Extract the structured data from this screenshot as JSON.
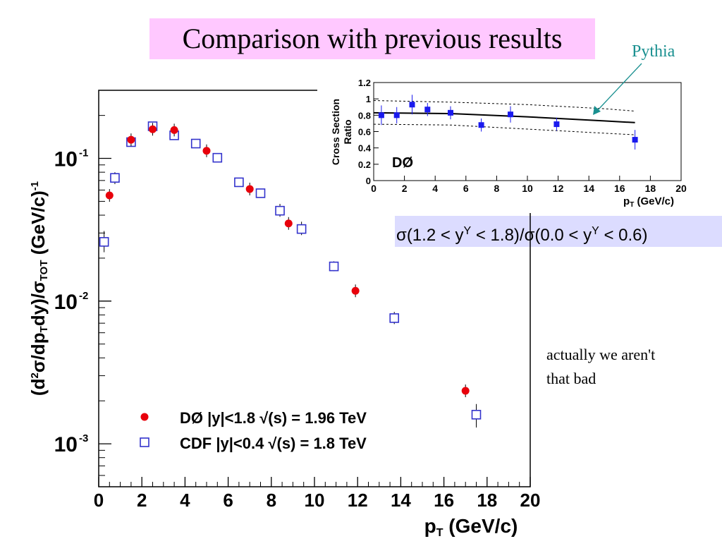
{
  "slide": {
    "title": "Comparison with previous results",
    "pythia_label": "Pythia",
    "ratio_formula": {
      "p1": "σ(1.2 < y",
      "sup1": "Υ",
      "p2": " < 1.8)/σ(0.0 < y",
      "sup2": "Υ",
      "p3": " < 0.6)"
    },
    "comment_line1": "actually we aren't",
    "comment_line2": "that bad"
  },
  "chart_data": [
    {
      "type": "scatter",
      "y_scale": "log",
      "xlim": [
        0,
        20
      ],
      "ylim": [
        0.0005,
        0.3
      ],
      "x_ticks": [
        "0",
        "2",
        "4",
        "6",
        "8",
        "10",
        "12",
        "14",
        "16",
        "18",
        "20"
      ],
      "y_ticks": [
        {
          "base": "10",
          "exp": "-1",
          "value": 0.1
        },
        {
          "base": "10",
          "exp": "-2",
          "value": 0.01
        },
        {
          "base": "10",
          "exp": "-3",
          "value": 0.001
        }
      ],
      "ylabel": {
        "p1": "(d",
        "s1": "2",
        "p2": "σ/dp",
        "s2": "T",
        "p3": "dy)/σ",
        "s3": "TOT",
        "p4": " (GeV/c)",
        "s4": "-1"
      },
      "xlabel": {
        "main": "p",
        "sub": "T",
        "rest": " (GeV/c)"
      },
      "legend_position": "bottom-left",
      "series": [
        {
          "name": "DØ |y|<1.8 √(s) = 1.96 TeV",
          "marker": "filled-circle",
          "color": "#e8000b",
          "x": [
            0.5,
            1.5,
            2.5,
            3.5,
            5.0,
            7.0,
            8.8,
            11.9,
            17.0
          ],
          "y": [
            0.055,
            0.135,
            0.16,
            0.158,
            0.113,
            0.061,
            0.035,
            0.0118,
            0.00235
          ]
        },
        {
          "name": "CDF |y|<0.4 √(s) = 1.8 TeV",
          "marker": "open-square",
          "color": "#3333cc",
          "x": [
            0.25,
            0.75,
            1.5,
            2.5,
            3.5,
            4.5,
            5.5,
            6.5,
            7.5,
            8.4,
            9.4,
            10.9,
            13.7,
            17.5
          ],
          "y": [
            0.026,
            0.073,
            0.13,
            0.168,
            0.145,
            0.127,
            0.101,
            0.068,
            0.057,
            0.043,
            0.032,
            0.0175,
            0.0076,
            0.0016
          ],
          "err_low": [
            0.022,
            0.066,
            0.125,
            0.162,
            0.138,
            0.12,
            0.096,
            0.064,
            0.053,
            0.039,
            0.029,
            0.0162,
            0.0069,
            0.0013
          ],
          "err_high": [
            0.031,
            0.08,
            0.137,
            0.175,
            0.152,
            0.134,
            0.106,
            0.073,
            0.061,
            0.048,
            0.036,
            0.019,
            0.0084,
            0.0019
          ]
        }
      ]
    },
    {
      "type": "scatter",
      "xlim": [
        0,
        20
      ],
      "ylim": [
        0,
        1.2
      ],
      "x_ticks": [
        "0",
        "2",
        "4",
        "6",
        "8",
        "10",
        "12",
        "14",
        "16",
        "18",
        "20"
      ],
      "y_ticks": [
        "0",
        "0.2",
        "0.4",
        "0.6",
        "0.8",
        "1",
        "1.2"
      ],
      "ylabel_line1": "Cross Section",
      "ylabel_line2": "Ratio",
      "xlabel": {
        "main": "p",
        "sub": "T",
        "rest": " (GeV/c)"
      },
      "watermark": "DØ",
      "series": [
        {
          "marker": "filled-square",
          "color": "#1a1aee",
          "x": [
            0.5,
            1.5,
            2.5,
            3.5,
            5.0,
            7.0,
            8.9,
            11.9,
            17.0
          ],
          "y": [
            0.8,
            0.8,
            0.93,
            0.87,
            0.83,
            0.68,
            0.81,
            0.69,
            0.5
          ],
          "err": [
            0.12,
            0.1,
            0.12,
            0.08,
            0.08,
            0.08,
            0.1,
            0.08,
            0.12
          ]
        }
      ],
      "curves": {
        "central": {
          "x": [
            0,
            5,
            10,
            15,
            17
          ],
          "y": [
            0.83,
            0.82,
            0.78,
            0.73,
            0.71
          ]
        },
        "upper": {
          "x": [
            0,
            5,
            10,
            15,
            17
          ],
          "y": [
            0.98,
            0.96,
            0.93,
            0.88,
            0.85
          ]
        },
        "lower": {
          "x": [
            0,
            5,
            10,
            15,
            17
          ],
          "y": [
            0.69,
            0.68,
            0.63,
            0.58,
            0.56
          ]
        }
      }
    }
  ]
}
